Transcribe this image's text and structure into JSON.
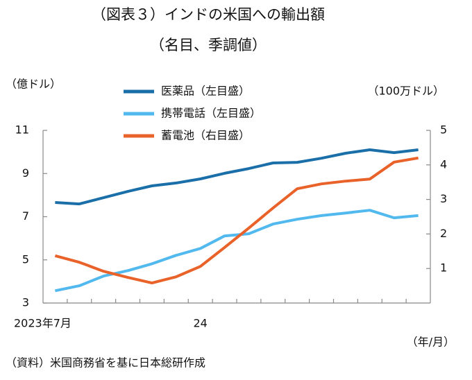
{
  "chart_data": {
    "type": "line",
    "title": "（図表３）インドの米国への輸出額",
    "subtitle": "（名目、季調値）",
    "y_label": "（億ドル）",
    "y2_label": "（100万ドル）",
    "x_label": "（年/月）",
    "source": "（資料）米国商務省を基に日本総研作成",
    "categories": [
      "2023年7月",
      null,
      null,
      null,
      null,
      null,
      "24",
      null,
      null,
      null,
      null,
      null,
      null,
      null,
      null,
      null
    ],
    "ylim": [
      3,
      11
    ],
    "yticks": [
      3,
      5,
      7,
      9,
      11
    ],
    "y2lim": [
      0,
      5
    ],
    "y2ticks": [
      1,
      2,
      3,
      4,
      5
    ],
    "series": [
      {
        "name": "医薬品（左目盛）",
        "color": "#1b6fa8",
        "values": [
          7.66,
          7.59,
          7.88,
          8.17,
          8.43,
          8.56,
          8.75,
          9.01,
          9.23,
          9.49,
          9.52,
          9.71,
          9.94,
          10.1,
          9.97,
          10.1
        ]
      },
      {
        "name": "携帯電話（左目盛）",
        "color": "#52b9ee",
        "values": [
          3.57,
          3.8,
          4.25,
          4.5,
          4.82,
          5.21,
          5.53,
          6.11,
          6.21,
          6.66,
          6.88,
          7.05,
          7.17,
          7.3,
          6.95,
          7.05
        ]
      },
      {
        "name": "蓄電池（右目盛）",
        "color": "#e8622a",
        "axis": "y2",
        "values": [
          1.37,
          1.18,
          0.92,
          0.74,
          0.58,
          0.76,
          1.06,
          1.61,
          2.17,
          2.75,
          3.31,
          3.45,
          3.53,
          3.59,
          4.08,
          4.2
        ]
      }
    ]
  }
}
